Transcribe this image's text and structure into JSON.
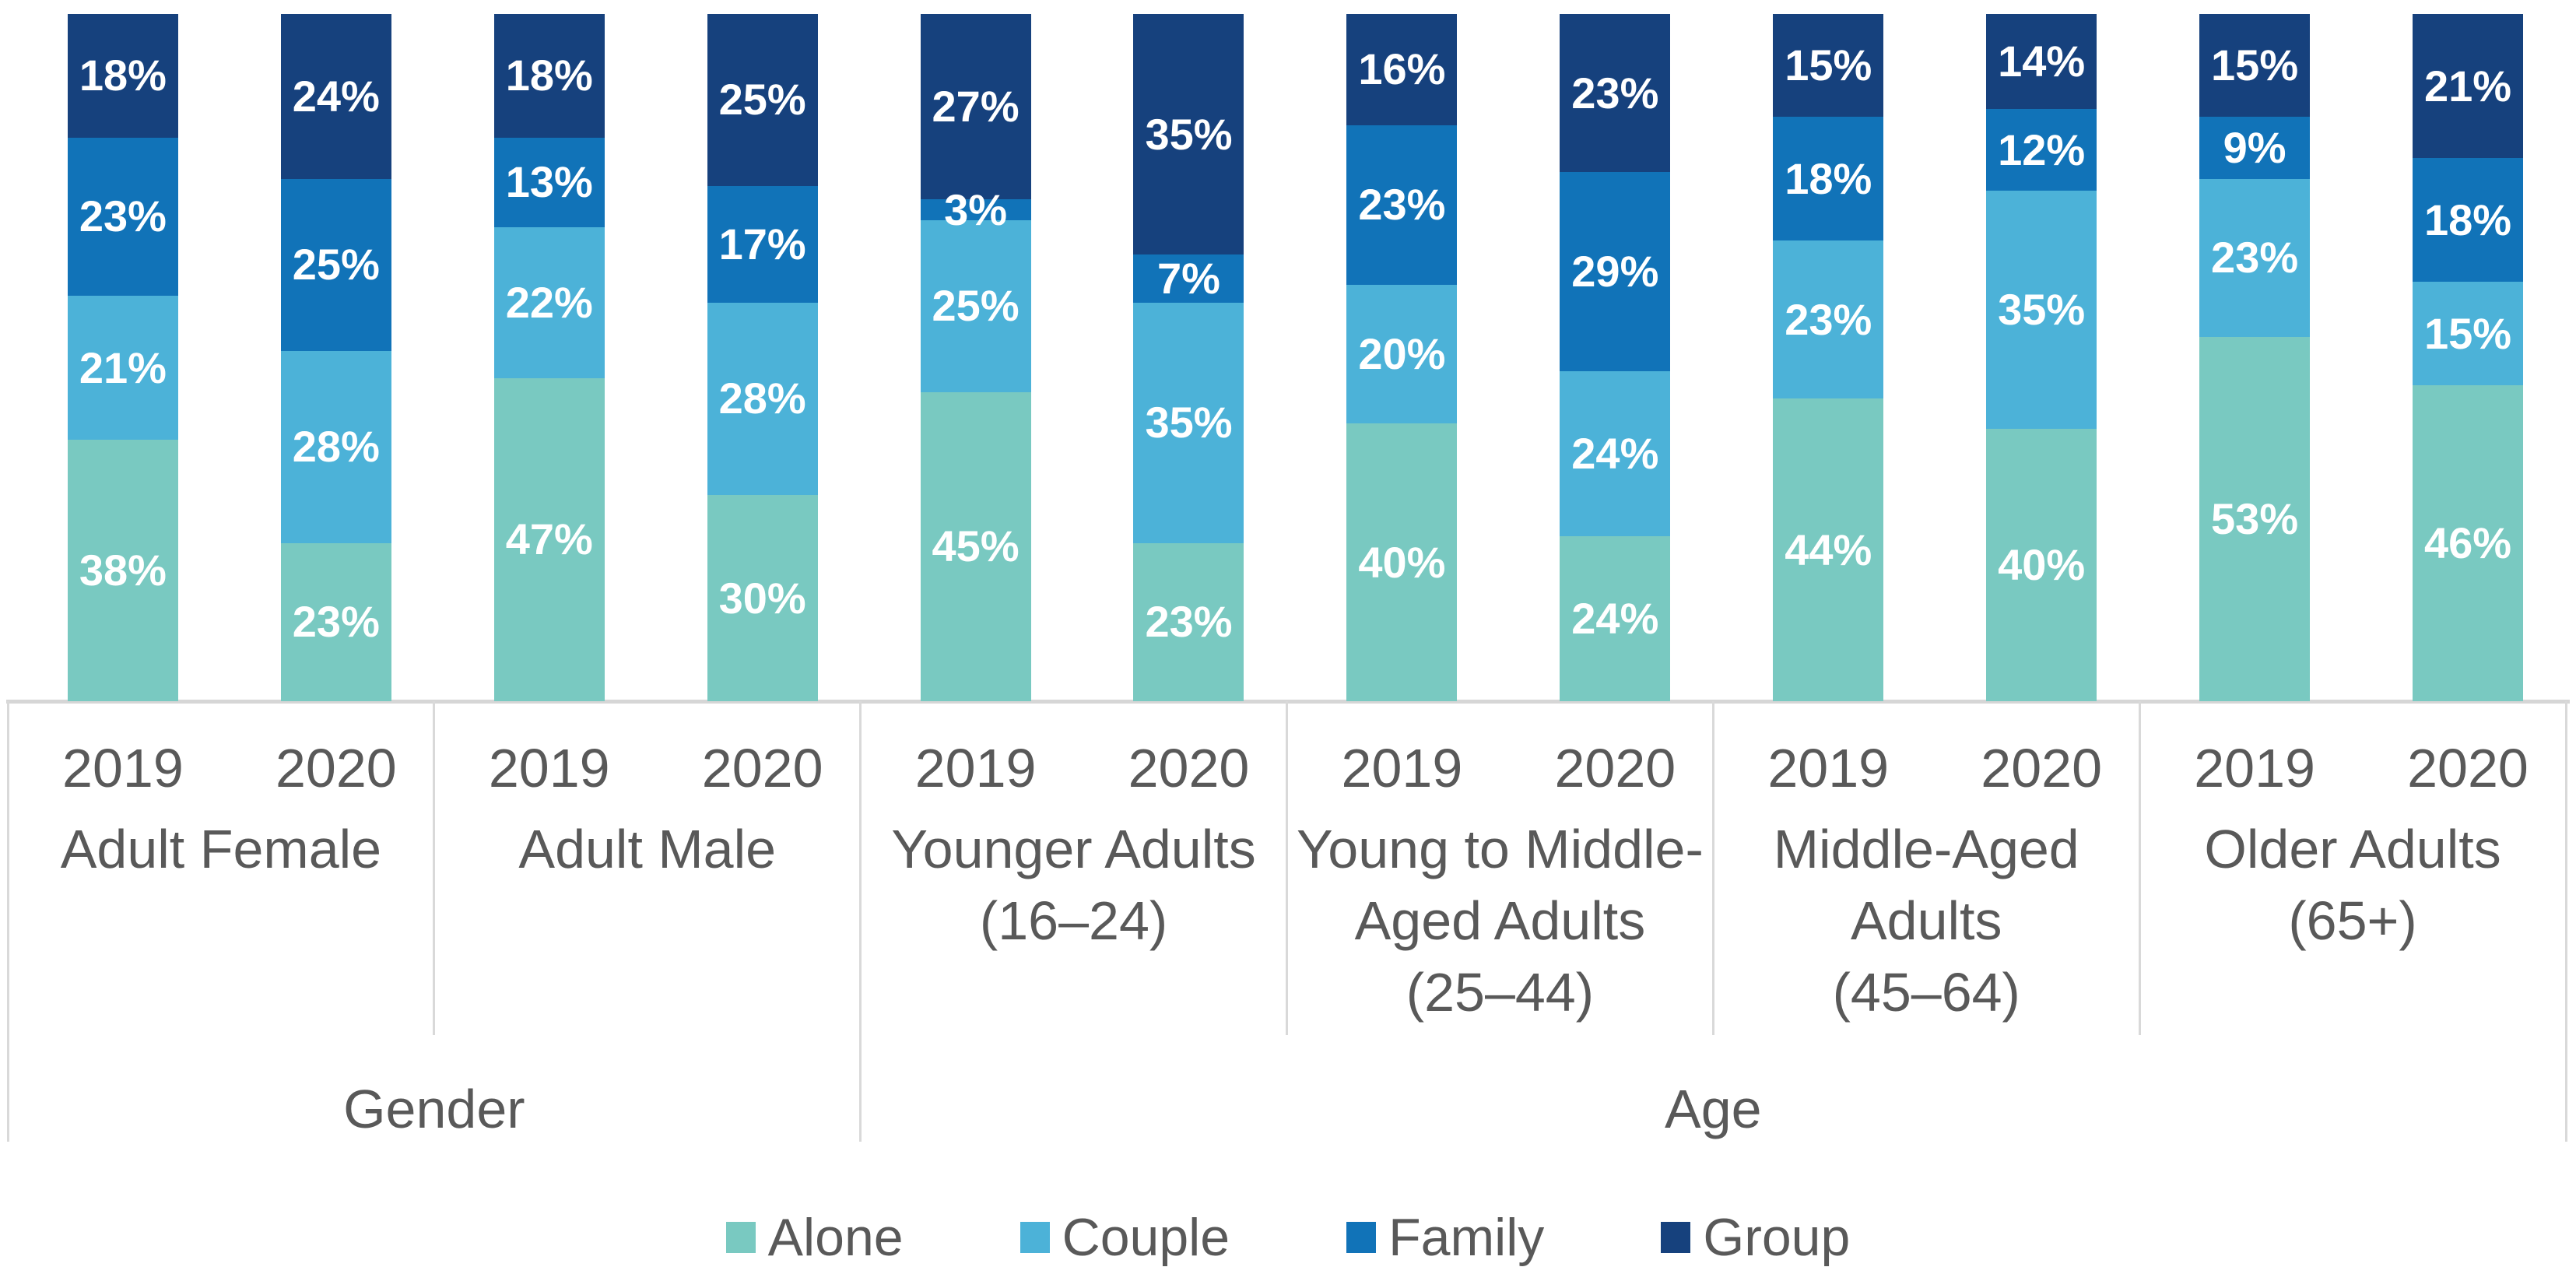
{
  "chart_data": {
    "type": "bar",
    "variant": "100-percent-stacked-column",
    "title": "",
    "grid": false,
    "legend_position": "bottom",
    "series_bottom_to_top": [
      "Alone",
      "Couple",
      "Family",
      "Group"
    ],
    "series_colors": {
      "Alone": "#79C9C1",
      "Couple": "#4CB2D8",
      "Family": "#1173B8",
      "Group": "#16417D"
    },
    "legend": [
      "Alone",
      "Couple",
      "Family",
      "Group"
    ],
    "groups": [
      {
        "label": "Adult Female",
        "label_lines": [
          "Adult Female"
        ],
        "bars": [
          {
            "year": "2019",
            "values": {
              "Alone": 38,
              "Couple": 21,
              "Family": 23,
              "Group": 18
            }
          },
          {
            "year": "2020",
            "values": {
              "Alone": 23,
              "Couple": 28,
              "Family": 25,
              "Group": 24
            }
          }
        ]
      },
      {
        "label": "Adult Male",
        "label_lines": [
          "Adult Male"
        ],
        "bars": [
          {
            "year": "2019",
            "values": {
              "Alone": 47,
              "Couple": 22,
              "Family": 13,
              "Group": 18
            }
          },
          {
            "year": "2020",
            "values": {
              "Alone": 30,
              "Couple": 28,
              "Family": 17,
              "Group": 25
            }
          }
        ]
      },
      {
        "label": "Younger Adults (16–24)",
        "label_lines": [
          "Younger Adults",
          "(16–24)"
        ],
        "bars": [
          {
            "year": "2019",
            "values": {
              "Alone": 45,
              "Couple": 25,
              "Family": 3,
              "Group": 27
            }
          },
          {
            "year": "2020",
            "values": {
              "Alone": 23,
              "Couple": 35,
              "Family": 7,
              "Group": 35
            }
          }
        ]
      },
      {
        "label": "Young to Middle-Aged Adults (25–44)",
        "label_lines": [
          "Young to Middle-",
          "Aged Adults",
          "(25–44)"
        ],
        "bars": [
          {
            "year": "2019",
            "values": {
              "Alone": 40,
              "Couple": 20,
              "Family": 23,
              "Group": 16
            }
          },
          {
            "year": "2020",
            "values": {
              "Alone": 24,
              "Couple": 24,
              "Family": 29,
              "Group": 23
            }
          }
        ]
      },
      {
        "label": "Middle-Aged Adults (45–64)",
        "label_lines": [
          "Middle-Aged",
          "Adults",
          "(45–64)"
        ],
        "bars": [
          {
            "year": "2019",
            "values": {
              "Alone": 44,
              "Couple": 23,
              "Family": 18,
              "Group": 15
            }
          },
          {
            "year": "2020",
            "values": {
              "Alone": 40,
              "Couple": 35,
              "Family": 12,
              "Group": 14
            }
          }
        ]
      },
      {
        "label": "Older Adults (65+)",
        "label_lines": [
          "Older Adults",
          "(65+)"
        ],
        "bars": [
          {
            "year": "2019",
            "values": {
              "Alone": 53,
              "Couple": 23,
              "Family": 9,
              "Group": 15
            }
          },
          {
            "year": "2020",
            "values": {
              "Alone": 46,
              "Couple": 15,
              "Family": 18,
              "Group": 21
            }
          }
        ]
      }
    ],
    "group_level_labels": [
      {
        "label": "Gender",
        "spans_groups": [
          0,
          1
        ]
      },
      {
        "label": "Age",
        "spans_groups": [
          2,
          3,
          4,
          5
        ]
      }
    ],
    "value_suffix": "%"
  },
  "colors": {
    "background": "#ffffff",
    "axis_line": "#d6d6d6",
    "divider_line": "#d9d9d9",
    "axis_text": "#595959",
    "bar_value_text": "#ffffff"
  }
}
